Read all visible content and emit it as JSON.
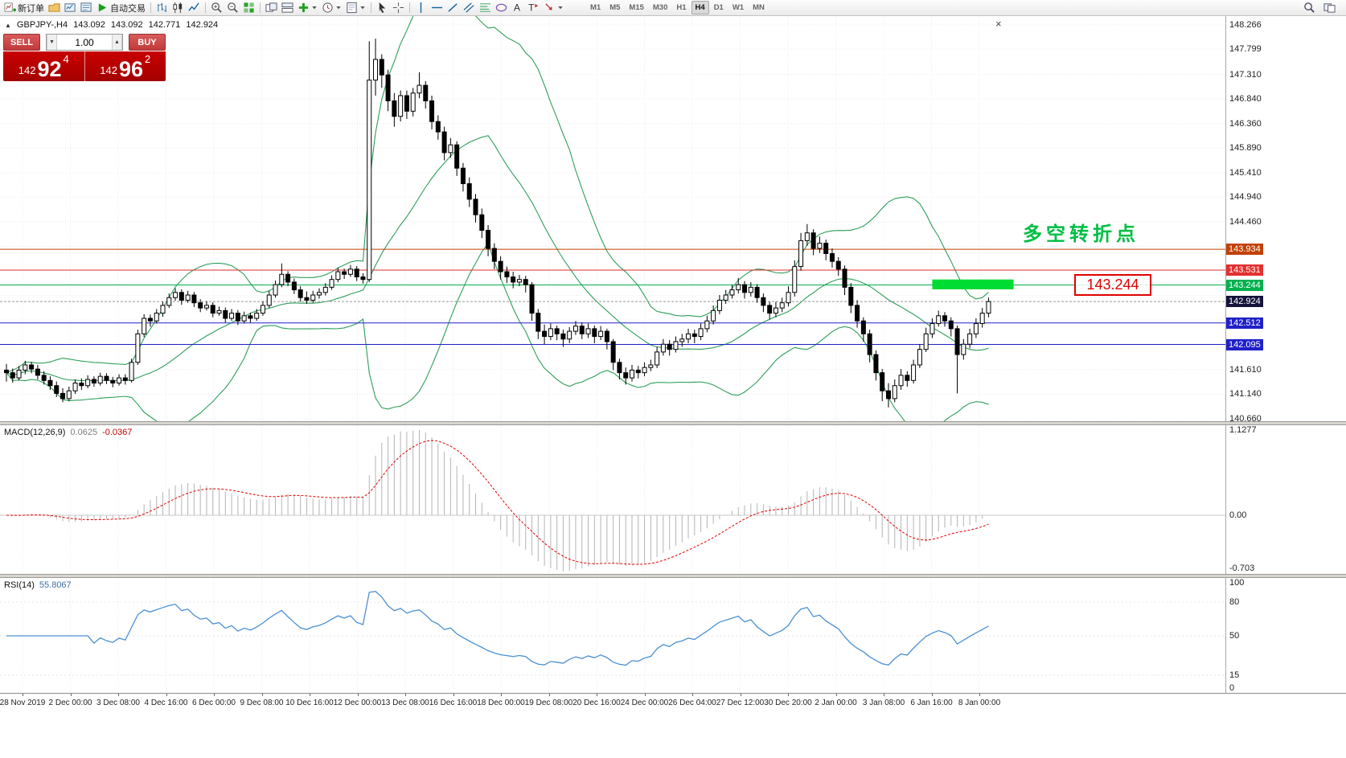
{
  "colors": {
    "bollinger": "#2E9E5B",
    "grid": "#ECECEC",
    "candle_outline": "#000000",
    "macd_histogram": "#B4B4B4",
    "macd_signal": "#E00000",
    "rsi_line": "#4A90D2",
    "bid_label_bg": "#14143C",
    "accent_red": "#C90000",
    "annotation_green": "#00BE44",
    "callout_red": "#E00000"
  },
  "toolbar": {
    "items": [
      {
        "icon": "chartplus",
        "label": "新订单",
        "name": "new-order-button"
      },
      {
        "icon": "profiles",
        "name": "profiles-button"
      },
      {
        "icon": "charts",
        "name": "charts-button"
      },
      {
        "icon": "quotes",
        "name": "market-watch-button"
      },
      {
        "icon": "play",
        "label": "自动交易",
        "name": "autotrading-button"
      },
      {
        "sep": true
      },
      {
        "icon": "bars",
        "name": "bar-chart-button"
      },
      {
        "icon": "candle",
        "name": "candlestick-chart-button"
      },
      {
        "icon": "linech",
        "name": "line-chart-button"
      },
      {
        "sep": true
      },
      {
        "icon": "zoomin",
        "name": "zoom-in-button"
      },
      {
        "icon": "zoomout",
        "name": "zoom-out-button"
      },
      {
        "icon": "tile",
        "name": "tile-windows-button"
      },
      {
        "sep": true
      },
      {
        "icon": "cascade",
        "name": "new-chart-button"
      },
      {
        "icon": "tileh",
        "name": "arrange-windows-button"
      },
      {
        "icon": "indicator",
        "dd": true,
        "name": "indicators-button"
      },
      {
        "icon": "clock",
        "dd": true,
        "name": "periods-button"
      },
      {
        "icon": "template",
        "dd": true,
        "name": "templates-button"
      },
      {
        "sep": true
      },
      {
        "icon": "cursor",
        "name": "cursor-tool-button"
      },
      {
        "icon": "crosshair",
        "name": "crosshair-tool-button"
      },
      {
        "sep": true
      },
      {
        "icon": "vline",
        "name": "vertical-line-tool-button"
      },
      {
        "icon": "hline",
        "name": "horizontal-line-tool-button"
      },
      {
        "icon": "trend",
        "name": "trendline-tool-button"
      },
      {
        "icon": "channelic",
        "name": "channel-tool-button"
      },
      {
        "icon": "fibo",
        "name": "fibonacci-tool-button"
      },
      {
        "icon": "shapes",
        "name": "shapes-tool-button"
      },
      {
        "icon": "textic",
        "name": "text-tool-button"
      },
      {
        "icon": "labelic",
        "name": "label-tool-button"
      },
      {
        "icon": "arrowic",
        "dd": true,
        "name": "arrows-tool-button"
      }
    ],
    "timeframes": [
      "M1",
      "M5",
      "M15",
      "M30",
      "H1",
      "H4",
      "D1",
      "W1",
      "MN"
    ],
    "active_timeframe": "H4",
    "right_items": [
      {
        "icon": "search",
        "name": "search-button"
      },
      {
        "icon": "winpair",
        "name": "windows-button"
      }
    ]
  },
  "symbol_info": {
    "marker": "▲",
    "symbol": "GBPJPY-,H4",
    "open": "143.092",
    "high": "143.092",
    "low": "142.771",
    "close": "142.924"
  },
  "order_panel": {
    "sell_label": "SELL",
    "buy_label": "BUY",
    "volume": "1.00",
    "sell_prefix": "142",
    "sell_big": "92",
    "sell_sup": "4",
    "buy_prefix": "142",
    "buy_big": "96",
    "buy_sup": "2"
  },
  "icons": {
    "close": "×",
    "caret_down": "▼",
    "caret_up": "▲"
  },
  "chart_data": {
    "type": "candlestick",
    "symbol": "GBPJPY",
    "timeframe": "H4",
    "ylim": [
      140.66,
      148.266
    ],
    "bollinger": {
      "period": 20,
      "deviation": 2
    },
    "bid": {
      "price": 142.924,
      "label": "142.924"
    },
    "levels": [
      {
        "price": 143.934,
        "color": "#C24100",
        "label": "143.934"
      },
      {
        "price": 143.531,
        "color": "#E43030",
        "label": "143.531"
      },
      {
        "price": 143.244,
        "color": "#00B14F",
        "label": "143.244"
      },
      {
        "price": 142.512,
        "color": "#2020C8",
        "label": "142.512"
      },
      {
        "price": 142.095,
        "color": "#2020C8",
        "label": "142.095"
      }
    ],
    "candles": [
      [
        141.6,
        141.72,
        141.38,
        141.55
      ],
      [
        141.55,
        141.63,
        141.36,
        141.45
      ],
      [
        141.45,
        141.68,
        141.4,
        141.6
      ],
      [
        141.6,
        141.78,
        141.52,
        141.7
      ],
      [
        141.7,
        141.76,
        141.54,
        141.62
      ],
      [
        141.62,
        141.7,
        141.42,
        141.5
      ],
      [
        141.5,
        141.58,
        141.32,
        141.4
      ],
      [
        141.4,
        141.48,
        141.22,
        141.3
      ],
      [
        141.3,
        141.38,
        141.08,
        141.15
      ],
      [
        141.15,
        141.25,
        140.98,
        141.05
      ],
      [
        141.05,
        141.28,
        141.0,
        141.2
      ],
      [
        141.2,
        141.42,
        141.14,
        141.35
      ],
      [
        141.35,
        141.44,
        141.22,
        141.3
      ],
      [
        141.3,
        141.5,
        141.25,
        141.42
      ],
      [
        141.42,
        141.48,
        141.28,
        141.35
      ],
      [
        141.35,
        141.55,
        141.3,
        141.48
      ],
      [
        141.48,
        141.54,
        141.33,
        141.4
      ],
      [
        141.4,
        141.47,
        141.27,
        141.35
      ],
      [
        141.35,
        141.52,
        141.3,
        141.45
      ],
      [
        141.45,
        141.52,
        141.32,
        141.4
      ],
      [
        141.4,
        141.82,
        141.36,
        141.75
      ],
      [
        141.75,
        142.38,
        141.7,
        142.3
      ],
      [
        142.3,
        142.68,
        142.24,
        142.6
      ],
      [
        142.6,
        142.67,
        142.44,
        142.55
      ],
      [
        142.55,
        142.78,
        142.5,
        142.7
      ],
      [
        142.7,
        142.92,
        142.63,
        142.85
      ],
      [
        142.85,
        143.08,
        142.8,
        143.0
      ],
      [
        143.0,
        143.18,
        142.94,
        143.1
      ],
      [
        143.1,
        143.16,
        142.86,
        142.95
      ],
      [
        142.95,
        143.13,
        142.9,
        143.05
      ],
      [
        143.05,
        143.11,
        142.82,
        142.9
      ],
      [
        142.9,
        142.97,
        142.72,
        142.8
      ],
      [
        142.8,
        142.93,
        142.75,
        142.85
      ],
      [
        142.85,
        142.91,
        142.62,
        142.7
      ],
      [
        142.7,
        142.83,
        142.65,
        142.75
      ],
      [
        142.75,
        142.81,
        142.52,
        142.6
      ],
      [
        142.6,
        142.78,
        142.55,
        142.7
      ],
      [
        142.7,
        142.76,
        142.47,
        142.55
      ],
      [
        142.55,
        142.73,
        142.5,
        142.65
      ],
      [
        142.65,
        142.71,
        142.52,
        142.6
      ],
      [
        142.6,
        142.78,
        142.55,
        142.7
      ],
      [
        142.7,
        142.93,
        142.65,
        142.85
      ],
      [
        142.85,
        143.13,
        142.8,
        143.05
      ],
      [
        143.05,
        143.33,
        143.0,
        143.25
      ],
      [
        143.25,
        143.66,
        143.2,
        143.45
      ],
      [
        143.45,
        143.51,
        143.22,
        143.3
      ],
      [
        143.3,
        143.37,
        143.07,
        143.15
      ],
      [
        143.15,
        143.22,
        142.92,
        143.0
      ],
      [
        143.0,
        143.12,
        142.88,
        142.95
      ],
      [
        142.95,
        143.13,
        142.9,
        143.05
      ],
      [
        143.05,
        143.18,
        142.98,
        143.1
      ],
      [
        143.1,
        143.28,
        143.04,
        143.2
      ],
      [
        143.2,
        143.43,
        143.15,
        143.35
      ],
      [
        143.35,
        143.58,
        143.3,
        143.5
      ],
      [
        143.5,
        143.56,
        143.36,
        143.45
      ],
      [
        143.45,
        143.63,
        143.4,
        143.55
      ],
      [
        143.55,
        143.61,
        143.32,
        143.4
      ],
      [
        143.4,
        143.47,
        143.27,
        143.35
      ],
      [
        143.35,
        147.95,
        143.3,
        147.2
      ],
      [
        147.2,
        148.0,
        146.9,
        147.6
      ],
      [
        147.6,
        147.7,
        147.05,
        147.3
      ],
      [
        147.3,
        147.4,
        146.6,
        146.8
      ],
      [
        146.8,
        146.95,
        146.3,
        146.5
      ],
      [
        146.5,
        147.0,
        146.4,
        146.9
      ],
      [
        146.9,
        147.0,
        146.45,
        146.6
      ],
      [
        146.6,
        147.05,
        146.5,
        146.95
      ],
      [
        146.95,
        147.35,
        146.85,
        147.1
      ],
      [
        147.1,
        147.18,
        146.65,
        146.8
      ],
      [
        146.8,
        146.9,
        146.25,
        146.4
      ],
      [
        146.4,
        146.52,
        146.05,
        146.2
      ],
      [
        146.2,
        146.3,
        145.65,
        145.8
      ],
      [
        145.8,
        146.08,
        145.7,
        145.95
      ],
      [
        145.95,
        146.02,
        145.35,
        145.5
      ],
      [
        145.5,
        145.6,
        145.05,
        145.2
      ],
      [
        145.2,
        145.32,
        144.75,
        144.9
      ],
      [
        144.9,
        145.0,
        144.45,
        144.6
      ],
      [
        144.6,
        144.72,
        144.15,
        144.3
      ],
      [
        144.3,
        144.4,
        143.8,
        143.95
      ],
      [
        143.95,
        144.05,
        143.55,
        143.7
      ],
      [
        143.7,
        143.8,
        143.35,
        143.5
      ],
      [
        143.5,
        143.6,
        143.28,
        143.4
      ],
      [
        143.4,
        143.5,
        143.18,
        143.3
      ],
      [
        143.3,
        143.44,
        143.22,
        143.35
      ],
      [
        143.35,
        143.42,
        143.1,
        143.25
      ],
      [
        143.25,
        143.3,
        142.55,
        142.7
      ],
      [
        142.7,
        142.78,
        142.2,
        142.35
      ],
      [
        142.35,
        142.48,
        142.1,
        142.25
      ],
      [
        142.25,
        142.5,
        142.18,
        142.4
      ],
      [
        142.4,
        142.46,
        142.18,
        142.3
      ],
      [
        142.3,
        142.38,
        142.05,
        142.2
      ],
      [
        142.2,
        142.43,
        142.12,
        142.35
      ],
      [
        142.35,
        142.55,
        142.28,
        142.45
      ],
      [
        142.45,
        142.52,
        142.2,
        142.3
      ],
      [
        142.3,
        142.5,
        142.22,
        142.4
      ],
      [
        142.4,
        142.46,
        142.12,
        142.25
      ],
      [
        142.25,
        142.45,
        142.18,
        142.35
      ],
      [
        142.35,
        142.4,
        142.0,
        142.15
      ],
      [
        142.15,
        142.2,
        141.6,
        141.75
      ],
      [
        141.75,
        141.82,
        141.42,
        141.55
      ],
      [
        141.55,
        141.65,
        141.32,
        141.45
      ],
      [
        141.45,
        141.7,
        141.38,
        141.6
      ],
      [
        141.6,
        141.68,
        141.44,
        141.55
      ],
      [
        141.55,
        141.75,
        141.48,
        141.65
      ],
      [
        141.65,
        141.8,
        141.58,
        141.7
      ],
      [
        141.7,
        142.05,
        141.64,
        141.95
      ],
      [
        141.95,
        142.2,
        141.88,
        142.1
      ],
      [
        142.1,
        142.18,
        141.88,
        142.0
      ],
      [
        142.0,
        142.25,
        141.94,
        142.15
      ],
      [
        142.15,
        142.3,
        142.05,
        142.2
      ],
      [
        142.2,
        142.4,
        142.12,
        142.3
      ],
      [
        142.3,
        142.38,
        142.12,
        142.25
      ],
      [
        142.25,
        142.5,
        142.18,
        142.4
      ],
      [
        142.4,
        142.65,
        142.33,
        142.55
      ],
      [
        142.55,
        142.85,
        142.48,
        142.75
      ],
      [
        142.75,
        143.05,
        142.68,
        142.95
      ],
      [
        142.95,
        143.15,
        142.88,
        143.05
      ],
      [
        143.05,
        143.25,
        142.98,
        143.15
      ],
      [
        143.15,
        143.38,
        143.08,
        143.25
      ],
      [
        143.25,
        143.32,
        142.98,
        143.1
      ],
      [
        143.1,
        143.3,
        143.02,
        143.2
      ],
      [
        143.2,
        143.26,
        142.9,
        143.0
      ],
      [
        143.0,
        143.08,
        142.72,
        142.85
      ],
      [
        142.85,
        142.92,
        142.58,
        142.7
      ],
      [
        142.7,
        142.92,
        142.62,
        142.8
      ],
      [
        142.8,
        143.0,
        142.72,
        142.9
      ],
      [
        142.9,
        143.22,
        142.83,
        143.1
      ],
      [
        143.1,
        143.72,
        143.02,
        143.6
      ],
      [
        143.6,
        144.25,
        143.52,
        144.1
      ],
      [
        144.1,
        144.42,
        144.0,
        144.25
      ],
      [
        144.25,
        144.32,
        143.82,
        143.95
      ],
      [
        143.95,
        144.18,
        143.86,
        144.05
      ],
      [
        144.05,
        144.12,
        143.72,
        143.85
      ],
      [
        143.85,
        143.95,
        143.58,
        143.7
      ],
      [
        143.7,
        143.78,
        143.42,
        143.55
      ],
      [
        143.55,
        143.62,
        143.05,
        143.2
      ],
      [
        143.2,
        143.28,
        142.7,
        142.85
      ],
      [
        142.85,
        142.95,
        142.42,
        142.55
      ],
      [
        142.55,
        142.62,
        142.15,
        142.3
      ],
      [
        142.3,
        142.38,
        141.75,
        141.9
      ],
      [
        141.9,
        141.98,
        141.4,
        141.55
      ],
      [
        141.55,
        141.62,
        141.0,
        141.2
      ],
      [
        141.2,
        141.35,
        140.88,
        141.05
      ],
      [
        141.05,
        141.42,
        140.98,
        141.3
      ],
      [
        141.3,
        141.62,
        141.22,
        141.5
      ],
      [
        141.5,
        141.58,
        141.28,
        141.4
      ],
      [
        141.4,
        141.8,
        141.34,
        141.7
      ],
      [
        141.7,
        142.1,
        141.64,
        142.0
      ],
      [
        142.0,
        142.42,
        141.95,
        142.3
      ],
      [
        142.3,
        142.6,
        142.22,
        142.5
      ],
      [
        142.5,
        142.75,
        142.44,
        142.65
      ],
      [
        142.65,
        142.72,
        142.44,
        142.55
      ],
      [
        142.55,
        142.62,
        142.25,
        142.4
      ],
      [
        142.4,
        142.46,
        141.15,
        141.9
      ],
      [
        141.9,
        142.2,
        141.8,
        142.1
      ],
      [
        142.1,
        142.4,
        142.02,
        142.3
      ],
      [
        142.3,
        142.6,
        142.22,
        142.5
      ],
      [
        142.5,
        142.8,
        142.42,
        142.7
      ],
      [
        142.7,
        143.0,
        142.62,
        142.924
      ]
    ]
  },
  "price_scale": {
    "ticks": [
      148.266,
      147.799,
      147.31,
      146.84,
      146.36,
      145.89,
      145.41,
      144.94,
      144.46,
      143.99,
      143.52,
      143.04,
      142.57,
      142.1,
      141.61,
      141.14,
      140.66
    ]
  },
  "time_scale": {
    "labels": [
      "28 Nov 2019",
      "2 Dec 00:00",
      "3 Dec 08:00",
      "4 Dec 16:00",
      "6 Dec 00:00",
      "9 Dec 08:00",
      "10 Dec 16:00",
      "12 Dec 00:00",
      "13 Dec 08:00",
      "16 Dec 16:00",
      "18 Dec 00:00",
      "19 Dec 08:00",
      "20 Dec 16:00",
      "24 Dec 00:00",
      "26 Dec 04:00",
      "27 Dec 12:00",
      "30 Dec 20:00",
      "2 Jan 00:00",
      "3 Jan 08:00",
      "6 Jan 16:00",
      "8 Jan 00:00"
    ]
  },
  "macd": {
    "name": "MACD(12,26,9)",
    "value": "0.0625",
    "signal": "-0.0367",
    "scale": [
      "1.1277",
      "0.00",
      "-0.703"
    ]
  },
  "rsi": {
    "name": "RSI(14)",
    "value": "55.8067",
    "scale": [
      "100",
      "80",
      "50",
      "15",
      "0"
    ]
  },
  "annotations": {
    "turning_point": "多空转折点",
    "turning_point_color": "#00BE44",
    "price_callout": "143.244",
    "callout_color": "#E00000",
    "highlight_rect": {
      "from_index": 148,
      "to_index": 161,
      "price_top": 143.35,
      "price_bottom": 143.16,
      "color": "#00DC32"
    }
  }
}
